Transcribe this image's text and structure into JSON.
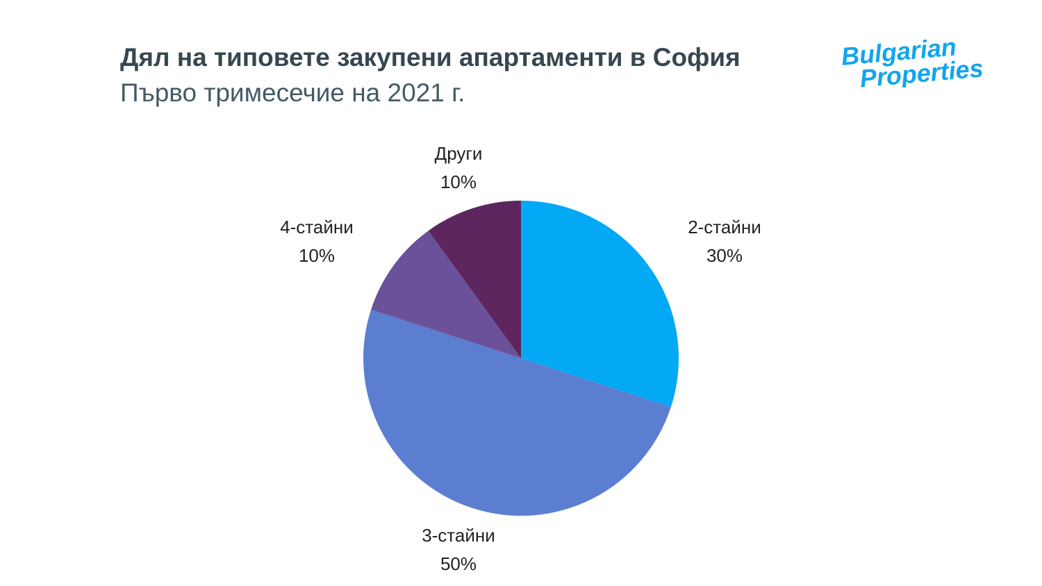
{
  "logo": {
    "line1": "Bulgarian",
    "line2": "Properties",
    "color": "#12A5EC"
  },
  "chart_data": {
    "type": "pie",
    "title": "Дял на типовете закупени апартаменти в София",
    "subtitle": "Първо тримесечие на 2021 г.",
    "start": "top",
    "direction": "clockwise",
    "slices": [
      {
        "label": "2-стайни",
        "value": 30,
        "value_label": "30%",
        "color": "#03A9F4"
      },
      {
        "label": "3-стайни",
        "value": 50,
        "value_label": "50%",
        "color": "#5C7ED1"
      },
      {
        "label": "4-стайни",
        "value": 10,
        "value_label": "10%",
        "color": "#6A5199"
      },
      {
        "label": "Други",
        "value": 10,
        "value_label": "10%",
        "color": "#5E265E"
      }
    ]
  }
}
